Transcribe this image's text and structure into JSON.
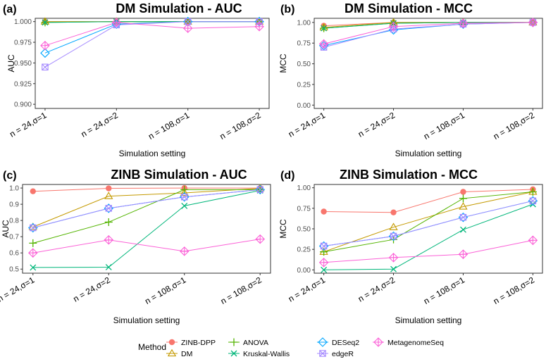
{
  "chart_data": [
    {
      "type": "line",
      "panel_label": "(a)",
      "title": "DM Simulation - AUC",
      "xlabel": "Simulation setting",
      "ylabel": "AUC",
      "categories": [
        "n = 24,σ=1",
        "n = 24,σ=2",
        "n = 108,σ=1",
        "n = 108,σ=2"
      ],
      "ylim": [
        0.895,
        1.004
      ],
      "yticks": [
        0.9,
        0.925,
        0.95,
        0.975,
        1.0
      ],
      "ytick_labels": [
        "0.900",
        "0.925",
        "0.950",
        "0.975",
        "1.000"
      ],
      "grid": false,
      "series": [
        {
          "name": "ZINB-DPP",
          "values": [
            1.0,
            1.0,
            1.0,
            1.0
          ]
        },
        {
          "name": "DM",
          "values": [
            1.0,
            1.0,
            1.0,
            1.0
          ]
        },
        {
          "name": "ANOVA",
          "values": [
            0.999,
            1.0,
            1.0,
            1.0
          ]
        },
        {
          "name": "Kruskal-Wallis",
          "values": [
            0.999,
            1.0,
            1.0,
            1.0
          ]
        },
        {
          "name": "DESeq2",
          "values": [
            0.962,
            0.997,
            1.0,
            1.0
          ]
        },
        {
          "name": "edgeR",
          "values": [
            0.945,
            0.996,
            1.0,
            1.0
          ]
        },
        {
          "name": "MetagenomeSeq",
          "values": [
            0.971,
            0.999,
            0.992,
            0.994
          ]
        }
      ]
    },
    {
      "type": "line",
      "panel_label": "(b)",
      "title": "DM Simulation - MCC",
      "xlabel": "Simulation setting",
      "ylabel": "MCC",
      "categories": [
        "n = 24,σ=1",
        "n = 24,σ=2",
        "n = 108,σ=1",
        "n = 108,σ=2"
      ],
      "ylim": [
        -0.04,
        1.05
      ],
      "yticks": [
        0,
        0.25,
        0.5,
        0.75,
        1.0
      ],
      "ytick_labels": [
        "0.00",
        "0.25",
        "0.50",
        "0.75",
        "1.00"
      ],
      "grid": false,
      "series": [
        {
          "name": "ZINB-DPP",
          "values": [
            0.96,
            1.0,
            1.0,
            1.0
          ]
        },
        {
          "name": "DM",
          "values": [
            0.94,
            1.0,
            1.0,
            1.0
          ]
        },
        {
          "name": "ANOVA",
          "values": [
            0.93,
            0.99,
            1.0,
            1.0
          ]
        },
        {
          "name": "Kruskal-Wallis",
          "values": [
            0.93,
            0.99,
            1.0,
            1.0
          ]
        },
        {
          "name": "DESeq2",
          "values": [
            0.72,
            0.91,
            0.98,
            1.0
          ]
        },
        {
          "name": "edgeR",
          "values": [
            0.7,
            0.92,
            0.98,
            1.0
          ]
        },
        {
          "name": "MetagenomeSeq",
          "values": [
            0.74,
            0.95,
            0.99,
            1.0
          ]
        }
      ]
    },
    {
      "type": "line",
      "panel_label": "(c)",
      "title": "ZINB Simulation - AUC",
      "xlabel": "Simulation setting",
      "ylabel": "AUC",
      "categories": [
        "n = 24,σ=1",
        "n = 24,σ=2",
        "n = 108,σ=1",
        "n = 108,σ=2"
      ],
      "ylim": [
        0.475,
        1.022
      ],
      "yticks": [
        0.5,
        0.6,
        0.7,
        0.8,
        0.9,
        1.0
      ],
      "ytick_labels": [
        "0.5",
        "0.6",
        "0.7",
        "0.8",
        "0.9",
        "1.0"
      ],
      "grid": false,
      "series": [
        {
          "name": "ZINB-DPP",
          "values": [
            0.98,
            0.998,
            1.0,
            1.0
          ]
        },
        {
          "name": "DM",
          "values": [
            0.76,
            0.95,
            0.97,
            0.998
          ]
        },
        {
          "name": "ANOVA",
          "values": [
            0.66,
            0.79,
            0.99,
            0.99
          ]
        },
        {
          "name": "Kruskal-Wallis",
          "values": [
            0.51,
            0.512,
            0.89,
            0.985
          ]
        },
        {
          "name": "DESeq2",
          "values": [
            0.755,
            0.875,
            0.945,
            0.99
          ]
        },
        {
          "name": "edgeR",
          "values": [
            0.755,
            0.875,
            0.945,
            0.99
          ]
        },
        {
          "name": "MetagenomeSeq",
          "values": [
            0.6,
            0.68,
            0.61,
            0.685
          ]
        }
      ]
    },
    {
      "type": "line",
      "panel_label": "(d)",
      "title": "ZINB Simulation - MCC",
      "xlabel": "Simulation setting",
      "ylabel": "MCC",
      "categories": [
        "n = 24,σ=1",
        "n = 24,σ=2",
        "n = 108,σ=1",
        "n = 108,σ=2"
      ],
      "ylim": [
        -0.04,
        1.04
      ],
      "yticks": [
        0,
        0.25,
        0.5,
        0.75,
        1.0
      ],
      "ytick_labels": [
        "0.00",
        "0.25",
        "0.50",
        "0.75",
        "1.00"
      ],
      "grid": false,
      "series": [
        {
          "name": "ZINB-DPP",
          "values": [
            0.71,
            0.7,
            0.95,
            0.98
          ]
        },
        {
          "name": "DM",
          "values": [
            0.22,
            0.52,
            0.77,
            0.95
          ]
        },
        {
          "name": "ANOVA",
          "values": [
            0.22,
            0.37,
            0.87,
            0.95
          ]
        },
        {
          "name": "Kruskal-Wallis",
          "values": [
            0.0,
            0.01,
            0.49,
            0.8
          ]
        },
        {
          "name": "DESeq2",
          "values": [
            0.29,
            0.41,
            0.64,
            0.84
          ]
        },
        {
          "name": "edgeR",
          "values": [
            0.29,
            0.41,
            0.64,
            0.84
          ]
        },
        {
          "name": "MetagenomeSeq",
          "values": [
            0.09,
            0.15,
            0.19,
            0.36
          ]
        }
      ]
    }
  ],
  "legend": {
    "title": "Method",
    "placement": "bottom",
    "items": [
      {
        "name": "ZINB-DPP",
        "color": "#f8766d",
        "shape": "circle-icon"
      },
      {
        "name": "DM",
        "color": "#c49a00",
        "shape": "triangle-icon"
      },
      {
        "name": "ANOVA",
        "color": "#53b400",
        "shape": "plus-icon"
      },
      {
        "name": "Kruskal-Wallis",
        "color": "#00b67a",
        "shape": "cross-icon"
      },
      {
        "name": "DESeq2",
        "color": "#00a6ff",
        "shape": "diamond-icon"
      },
      {
        "name": "edgeR",
        "color": "#a58aff",
        "shape": "boxed-cross-icon"
      },
      {
        "name": "MetagenomeSeq",
        "color": "#fb61d7",
        "shape": "diamond-plus-icon"
      }
    ]
  }
}
